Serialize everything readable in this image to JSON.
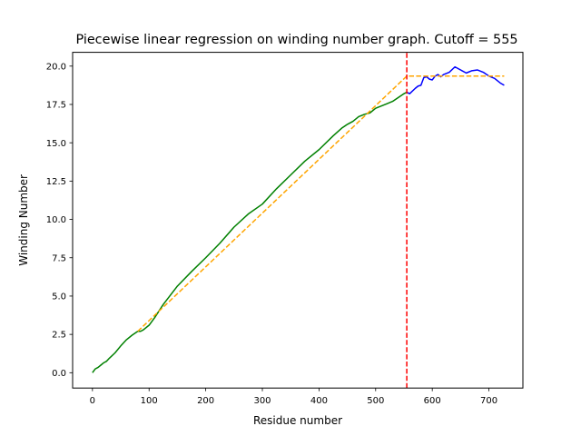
{
  "chart_data": {
    "type": "line",
    "title": "Piecewise linear regression on winding number graph. Cutoff = 555",
    "xlabel": "Residue number",
    "ylabel": "Winding Number",
    "xlim": [
      -35,
      760
    ],
    "ylim": [
      -1.0,
      20.9
    ],
    "x_ticks": [
      0,
      100,
      200,
      300,
      400,
      500,
      600,
      700
    ],
    "x_tick_labels": [
      "0",
      "100",
      "200",
      "300",
      "400",
      "500",
      "600",
      "700"
    ],
    "y_ticks": [
      0,
      2.5,
      5,
      7.5,
      10,
      12.5,
      15,
      17.5,
      20
    ],
    "y_tick_labels": [
      "0.0",
      "2.5",
      "5.0",
      "7.5",
      "10.0",
      "12.5",
      "15.0",
      "17.5",
      "20.0"
    ],
    "grid": false,
    "legend": "none",
    "cutoff": 555,
    "series": [
      {
        "style": "solid",
        "color": "#008000",
        "x": [
          0,
          5,
          10,
          15,
          20,
          25,
          30,
          40,
          50,
          60,
          70,
          80,
          85,
          90,
          100,
          110,
          125,
          150,
          175,
          200,
          225,
          250,
          275,
          300,
          325,
          350,
          375,
          400,
          425,
          440,
          450,
          460,
          470,
          480,
          490,
          500,
          510,
          520,
          530,
          540,
          550,
          555
        ],
        "y": [
          0.0,
          0.25,
          0.35,
          0.5,
          0.65,
          0.75,
          0.95,
          1.3,
          1.75,
          2.15,
          2.45,
          2.7,
          2.7,
          2.8,
          3.1,
          3.6,
          4.45,
          5.65,
          6.6,
          7.5,
          8.45,
          9.5,
          10.35,
          11.0,
          12.0,
          12.9,
          13.8,
          14.55,
          15.45,
          15.95,
          16.2,
          16.4,
          16.7,
          16.85,
          16.95,
          17.25,
          17.4,
          17.55,
          17.7,
          17.95,
          18.2,
          18.3
        ]
      },
      {
        "style": "solid",
        "color": "#0000ff",
        "x": [
          555,
          560,
          570,
          575,
          580,
          585,
          590,
          595,
          600,
          605,
          610,
          615,
          620,
          630,
          640,
          650,
          660,
          670,
          680,
          690,
          700,
          710,
          720,
          727
        ],
        "y": [
          18.3,
          18.2,
          18.55,
          18.7,
          18.75,
          19.25,
          19.3,
          19.15,
          19.1,
          19.35,
          19.45,
          19.3,
          19.45,
          19.6,
          19.95,
          19.75,
          19.55,
          19.7,
          19.75,
          19.6,
          19.35,
          19.2,
          18.9,
          18.75
        ]
      },
      {
        "style": "dashed",
        "color": "#ffa500",
        "x": [
          80,
          555,
          727
        ],
        "y": [
          2.7,
          19.35,
          19.35
        ]
      },
      {
        "style": "dashed",
        "color": "#ff0000",
        "x": [
          555,
          555
        ],
        "y": [
          -1.0,
          20.9
        ]
      }
    ]
  }
}
